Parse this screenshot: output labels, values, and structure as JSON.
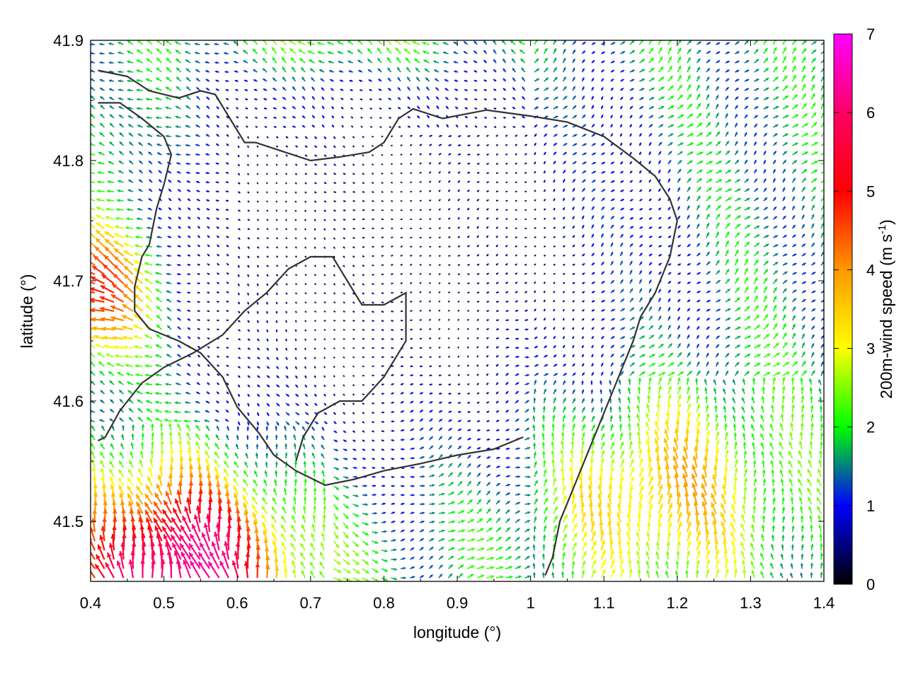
{
  "chart_data": {
    "type": "vector-field",
    "xlabel": "longitude (°)",
    "ylabel": "latitude (°)",
    "xlim": [
      0.4,
      1.4
    ],
    "ylim": [
      41.45,
      41.9
    ],
    "x_ticks": [
      "0.4",
      "0.5",
      "0.6",
      "0.7",
      "0.8",
      "0.9",
      "1",
      "1.1",
      "1.2",
      "1.3",
      "1.4"
    ],
    "y_ticks": [
      "41.5",
      "41.6",
      "41.7",
      "41.8",
      "41.9"
    ],
    "colorbar": {
      "label": "200m-wind speed",
      "unit_base": "(m s",
      "unit_exp": "-1",
      "unit_close": ")",
      "range": [
        0,
        7
      ],
      "ticks": [
        "0",
        "1",
        "2",
        "3",
        "4",
        "5",
        "6",
        "7"
      ],
      "colors": [
        "#000000",
        "#0000ff",
        "#00ff00",
        "#ffff00",
        "#ff9900",
        "#ff0000",
        "#ff00ff"
      ]
    },
    "grid": false,
    "contours": [
      [
        [
          0.41,
          41.875
        ],
        [
          0.45,
          41.87
        ],
        [
          0.48,
          41.858
        ],
        [
          0.52,
          41.852
        ],
        [
          0.55,
          41.858
        ],
        [
          0.57,
          41.855
        ],
        [
          0.59,
          41.835
        ],
        [
          0.61,
          41.815
        ],
        [
          0.625,
          41.815
        ],
        [
          0.66,
          41.808
        ],
        [
          0.7,
          41.8
        ],
        [
          0.74,
          41.803
        ],
        [
          0.78,
          41.807
        ],
        [
          0.8,
          41.815
        ],
        [
          0.82,
          41.835
        ],
        [
          0.84,
          41.843
        ],
        [
          0.88,
          41.835
        ],
        [
          0.94,
          41.842
        ],
        [
          1.0,
          41.837
        ],
        [
          1.05,
          41.832
        ],
        [
          1.1,
          41.82
        ],
        [
          1.14,
          41.802
        ],
        [
          1.17,
          41.787
        ],
        [
          1.19,
          41.768
        ],
        [
          1.2,
          41.75
        ],
        [
          1.19,
          41.72
        ],
        [
          1.17,
          41.69
        ],
        [
          1.15,
          41.67
        ],
        [
          1.14,
          41.65
        ],
        [
          1.12,
          41.62
        ],
        [
          1.1,
          41.59
        ],
        [
          1.08,
          41.56
        ],
        [
          1.06,
          41.53
        ],
        [
          1.04,
          41.5
        ],
        [
          1.03,
          41.47
        ],
        [
          1.02,
          41.455
        ]
      ],
      [
        [
          0.41,
          41.848
        ],
        [
          0.44,
          41.848
        ],
        [
          0.47,
          41.835
        ],
        [
          0.5,
          41.82
        ],
        [
          0.51,
          41.805
        ],
        [
          0.5,
          41.78
        ],
        [
          0.49,
          41.76
        ],
        [
          0.48,
          41.73
        ],
        [
          0.47,
          41.72
        ],
        [
          0.46,
          41.695
        ],
        [
          0.46,
          41.675
        ],
        [
          0.48,
          41.66
        ],
        [
          0.52,
          41.65
        ],
        [
          0.55,
          41.64
        ],
        [
          0.58,
          41.62
        ],
        [
          0.6,
          41.595
        ],
        [
          0.63,
          41.573
        ],
        [
          0.65,
          41.555
        ],
        [
          0.68,
          41.542
        ],
        [
          0.72,
          41.53
        ],
        [
          0.76,
          41.535
        ],
        [
          0.8,
          41.542
        ],
        [
          0.85,
          41.548
        ],
        [
          0.9,
          41.555
        ],
        [
          0.95,
          41.56
        ],
        [
          0.99,
          41.57
        ]
      ],
      [
        [
          0.41,
          41.567
        ],
        [
          0.42,
          41.57
        ],
        [
          0.44,
          41.592
        ],
        [
          0.47,
          41.615
        ],
        [
          0.5,
          41.628
        ],
        [
          0.54,
          41.64
        ],
        [
          0.58,
          41.655
        ],
        [
          0.61,
          41.675
        ],
        [
          0.64,
          41.69
        ],
        [
          0.67,
          41.71
        ],
        [
          0.7,
          41.72
        ],
        [
          0.73,
          41.72
        ],
        [
          0.75,
          41.7
        ],
        [
          0.77,
          41.68
        ],
        [
          0.8,
          41.68
        ],
        [
          0.83,
          41.69
        ],
        [
          0.83,
          41.65
        ],
        [
          0.8,
          41.62
        ],
        [
          0.77,
          41.6
        ],
        [
          0.74,
          41.6
        ],
        [
          0.71,
          41.59
        ],
        [
          0.69,
          41.57
        ],
        [
          0.68,
          41.55
        ]
      ]
    ]
  }
}
